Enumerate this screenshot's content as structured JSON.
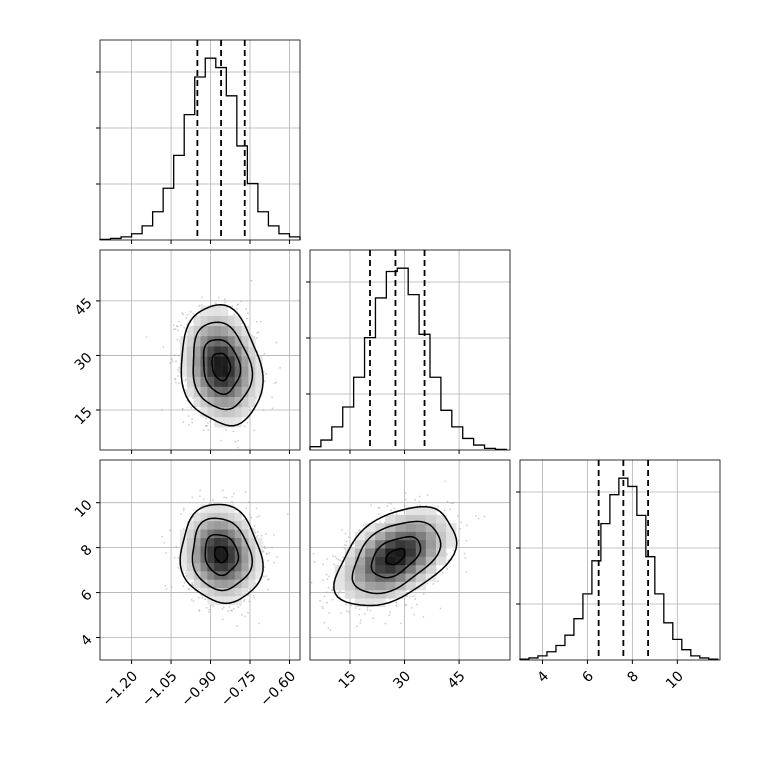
{
  "chart_data": {
    "type": "corner",
    "parameters": [
      {
        "axis_range": [
          -1.32,
          -0.56
        ],
        "ticks": [
          -1.2,
          -1.05,
          -0.9,
          -0.75,
          -0.6
        ],
        "tick_labels": [
          "−1.20",
          "−1.05",
          "−0.90",
          "−0.75",
          "−0.60"
        ],
        "quantiles": [
          -0.95,
          -0.86,
          -0.77
        ],
        "histogram": {
          "bin_edges": [
            -1.32,
            -1.28,
            -1.24,
            -1.2,
            -1.16,
            -1.12,
            -1.08,
            -1.04,
            -1.0,
            -0.96,
            -0.92,
            -0.88,
            -0.84,
            -0.8,
            -0.76,
            -0.72,
            -0.68,
            -0.64,
            -0.6,
            -0.56
          ],
          "counts": [
            0.2,
            0.5,
            1.0,
            2.0,
            4.5,
            9.0,
            16.5,
            27.0,
            40.0,
            52.0,
            58.0,
            55.0,
            46.0,
            30.0,
            18.0,
            9.0,
            4.5,
            2.0,
            1.0
          ]
        }
      },
      {
        "axis_range": [
          4,
          59
        ],
        "ticks": [
          15,
          30,
          45
        ],
        "tick_labels": [
          "15",
          "30",
          "45"
        ],
        "quantiles": [
          20.5,
          27.5,
          35.5
        ],
        "histogram": {
          "bin_edges": [
            4,
            7,
            10,
            13,
            16,
            19,
            22,
            25,
            28,
            31,
            34,
            37,
            40,
            43,
            46,
            49,
            52,
            55,
            58
          ],
          "counts": [
            1,
            3,
            7,
            13,
            22,
            34,
            46,
            54,
            55,
            47,
            35,
            22,
            12,
            7,
            3.5,
            1.5,
            0.5,
            0.2
          ]
        }
      },
      {
        "axis_range": [
          3.0,
          11.9
        ],
        "ticks": [
          4,
          6,
          8,
          10
        ],
        "tick_labels": [
          "4",
          "6",
          "8",
          "10"
        ],
        "quantiles": [
          6.5,
          7.6,
          8.7
        ],
        "histogram": {
          "bin_edges": [
            3.0,
            3.4,
            3.8,
            4.2,
            4.6,
            5.0,
            5.4,
            5.8,
            6.2,
            6.6,
            7.0,
            7.4,
            7.8,
            8.2,
            8.6,
            9.0,
            9.4,
            9.8,
            10.2,
            10.6,
            11.0,
            11.4,
            11.8
          ],
          "counts": [
            0.2,
            0.5,
            1.0,
            2.0,
            3.5,
            6.0,
            10.0,
            16.0,
            24.0,
            33.0,
            40.0,
            44.0,
            42.0,
            35.0,
            25.0,
            16.0,
            9.0,
            5.0,
            2.5,
            1.0,
            0.5,
            0.2
          ]
        }
      }
    ],
    "pairs": [
      {
        "x_param": 0,
        "y_param": 1,
        "center": [
          -0.86,
          27.0
        ],
        "sigma": [
          0.07,
          7.5
        ],
        "rho": -0.15,
        "contour_radii": [
          0.5,
          1.0,
          1.6,
          2.2
        ]
      },
      {
        "x_param": 0,
        "y_param": 2,
        "center": [
          -0.86,
          7.7
        ],
        "sigma": [
          0.07,
          1.0
        ],
        "rho": -0.1,
        "contour_radii": [
          0.35,
          0.9,
          1.6,
          2.2
        ]
      },
      {
        "x_param": 1,
        "y_param": 2,
        "center": [
          27.5,
          7.6
        ],
        "sigma": [
          7.5,
          1.0
        ],
        "rho": 0.45,
        "contour_radii": [
          0.35,
          0.9,
          1.6,
          2.2
        ]
      }
    ],
    "grid": true
  },
  "colors": {
    "line": "#000000",
    "grid": "#b0b0b0",
    "scatter": "#a6a6a6"
  }
}
